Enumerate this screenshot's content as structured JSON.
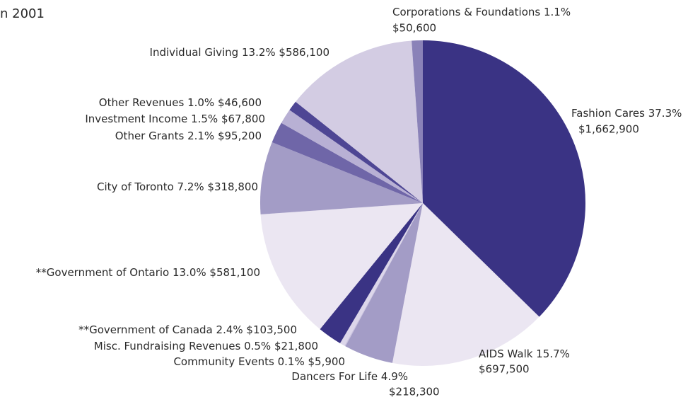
{
  "chart_data": {
    "type": "pie",
    "title": "n 2001",
    "categories": [
      "Fashion Cares",
      "AIDS Walk",
      "Dancers For Life",
      "Community Events",
      "Misc. Fundraising Revenues",
      "**Government of Canada",
      "**Government of Ontario",
      "City of Toronto",
      "Other Grants",
      "Investment Income",
      "Other Revenues",
      "Individual Giving",
      "Corporations & Foundations"
    ],
    "values": [
      37.3,
      15.7,
      4.9,
      0.1,
      0.5,
      2.4,
      13.0,
      7.2,
      2.1,
      1.5,
      1.0,
      13.2,
      1.1
    ],
    "value_labels": [
      "37.3%",
      "15.7%",
      "4.9%",
      "0.1%",
      "0.5%",
      "2.4%",
      "13.0%",
      "7.2%",
      "2.1%",
      "1.5%",
      "1.0%",
      "13.2%",
      "1.1%"
    ],
    "amounts": [
      1662900,
      697500,
      218300,
      5900,
      21800,
      103500,
      581100,
      318800,
      95200,
      67800,
      46600,
      586100,
      50600
    ],
    "amount_labels": [
      "$1,662,900",
      "$697,500",
      "$218,300",
      "$5,900",
      "$21,800",
      "$103,500",
      "$581,100",
      "$318,800",
      "$95,200",
      "$67,800",
      "$46,600",
      "$586,100",
      "$50,600"
    ],
    "colors": [
      "#3a3384",
      "#ebe6f2",
      "#a39cc6",
      "#c8c1de",
      "#dcd6ea",
      "#3a3384",
      "#ebe6f2",
      "#a39cc6",
      "#6f66a8",
      "#b8b0d4",
      "#4e4694",
      "#d3cce3",
      "#8a82b8"
    ]
  }
}
